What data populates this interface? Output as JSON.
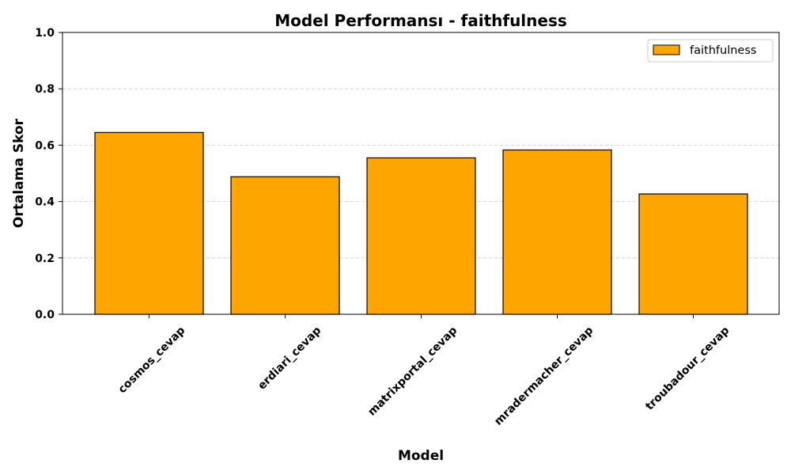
{
  "chart_data": {
    "type": "bar",
    "title": "Model Performansı - faithfulness",
    "xlabel": "Model",
    "ylabel": "Ortalama Skor",
    "categories": [
      "cosmos_cevap",
      "erdiari_cevap",
      "matrixportal_cevap",
      "mradermacher_cevap",
      "troubadour_cevap"
    ],
    "series": [
      {
        "name": "faithfulness",
        "values": [
          0.645,
          0.488,
          0.555,
          0.583,
          0.427
        ]
      }
    ],
    "ylim": [
      0,
      1.0
    ],
    "yticks": [
      "0.0",
      "0.2",
      "0.4",
      "0.6",
      "0.8",
      "1.0"
    ],
    "grid": {
      "y": true,
      "x": false,
      "style": "dashed"
    },
    "legend": {
      "placement": "top-right"
    },
    "colors": {
      "bar_fill": "#FFA500",
      "bar_edge": "#000000",
      "grid": "#c8c8c8"
    }
  }
}
